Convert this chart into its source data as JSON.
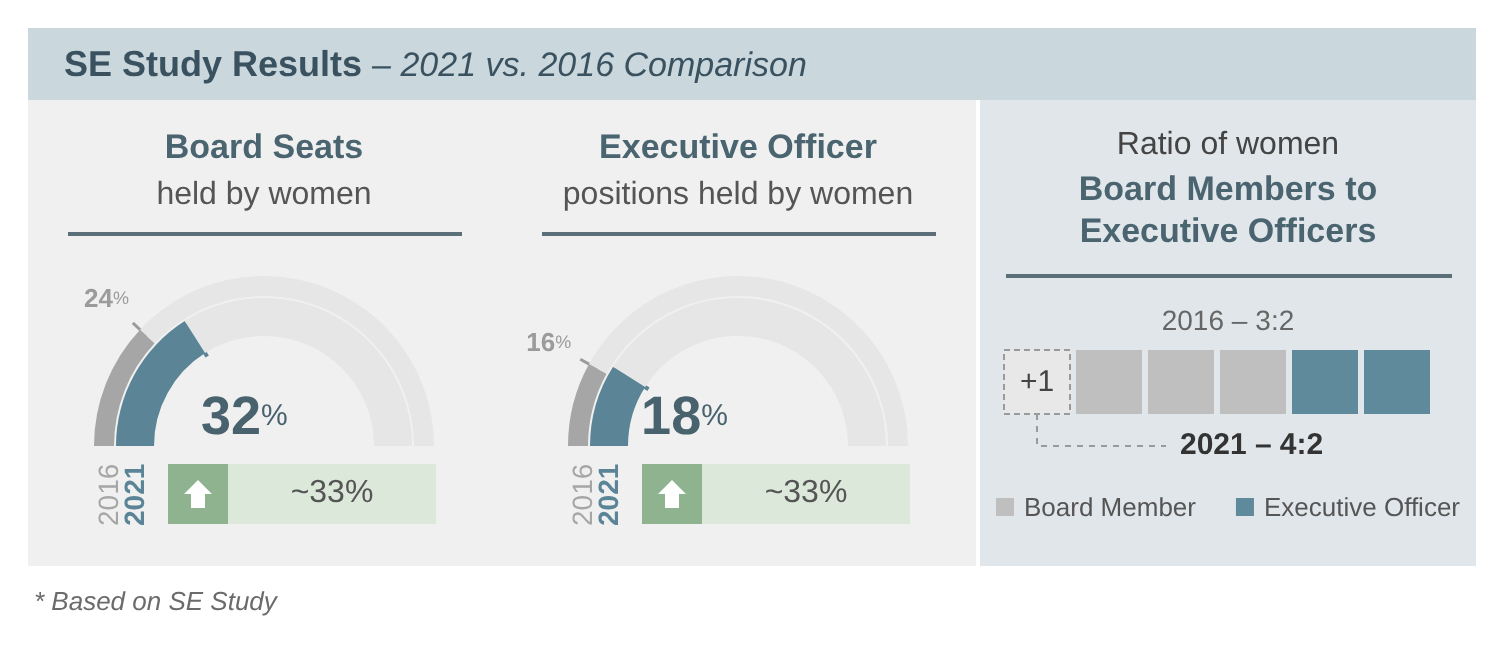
{
  "chart_data": [
    {
      "type": "other",
      "title": "SE Study Results",
      "subtitle": "– 2021 vs. 2016 Comparison",
      "annotations": [
        "* Based on SE Study"
      ]
    },
    {
      "type": "donut",
      "title": "Board Seats",
      "subtitle": "held by women",
      "categories": [
        null,
        null
      ],
      "series": [
        {
          "name": "2016",
          "colors": [
            "#a6a6a6",
            "#e6e6e6"
          ],
          "values": [
            24,
            76
          ],
          "value_labels": [
            "24%",
            null
          ]
        },
        {
          "name": "2021",
          "colors": [
            "#5b8597",
            "#e6e6e6"
          ],
          "values": [
            32,
            68
          ],
          "value_labels": [
            "32%",
            null
          ]
        }
      ],
      "annotations": [
        "~33%"
      ]
    },
    {
      "type": "donut",
      "title": "Executive Officer",
      "subtitle": "positions held by women",
      "categories": [
        null,
        null
      ],
      "series": [
        {
          "name": "2016",
          "colors": [
            "#a6a6a6",
            "#e6e6e6"
          ],
          "values": [
            16,
            84
          ],
          "value_labels": [
            "16%",
            null
          ]
        },
        {
          "name": "2021",
          "colors": [
            "#5b8597",
            "#e6e6e6"
          ],
          "values": [
            18,
            82
          ],
          "value_labels": [
            "18%",
            null
          ]
        }
      ],
      "annotations": [
        "~33%"
      ]
    },
    {
      "type": "other",
      "title": "Ratio of women",
      "subtitle": "Board Members to Executive Officers",
      "categories": [
        "2016 –",
        "2021 –"
      ],
      "series": [
        {
          "name": "Board Member",
          "color": "#bfbfbf",
          "values": [
            3,
            4
          ],
          "value_labels": [
            "3:",
            "4:"
          ]
        },
        {
          "name": "Executive Officer",
          "color": "#5e8a9c",
          "values": [
            2,
            2
          ],
          "value_labels": [
            "2",
            "2"
          ]
        }
      ],
      "annotations": [
        "+1"
      ],
      "legend": "bottom"
    }
  ]
}
